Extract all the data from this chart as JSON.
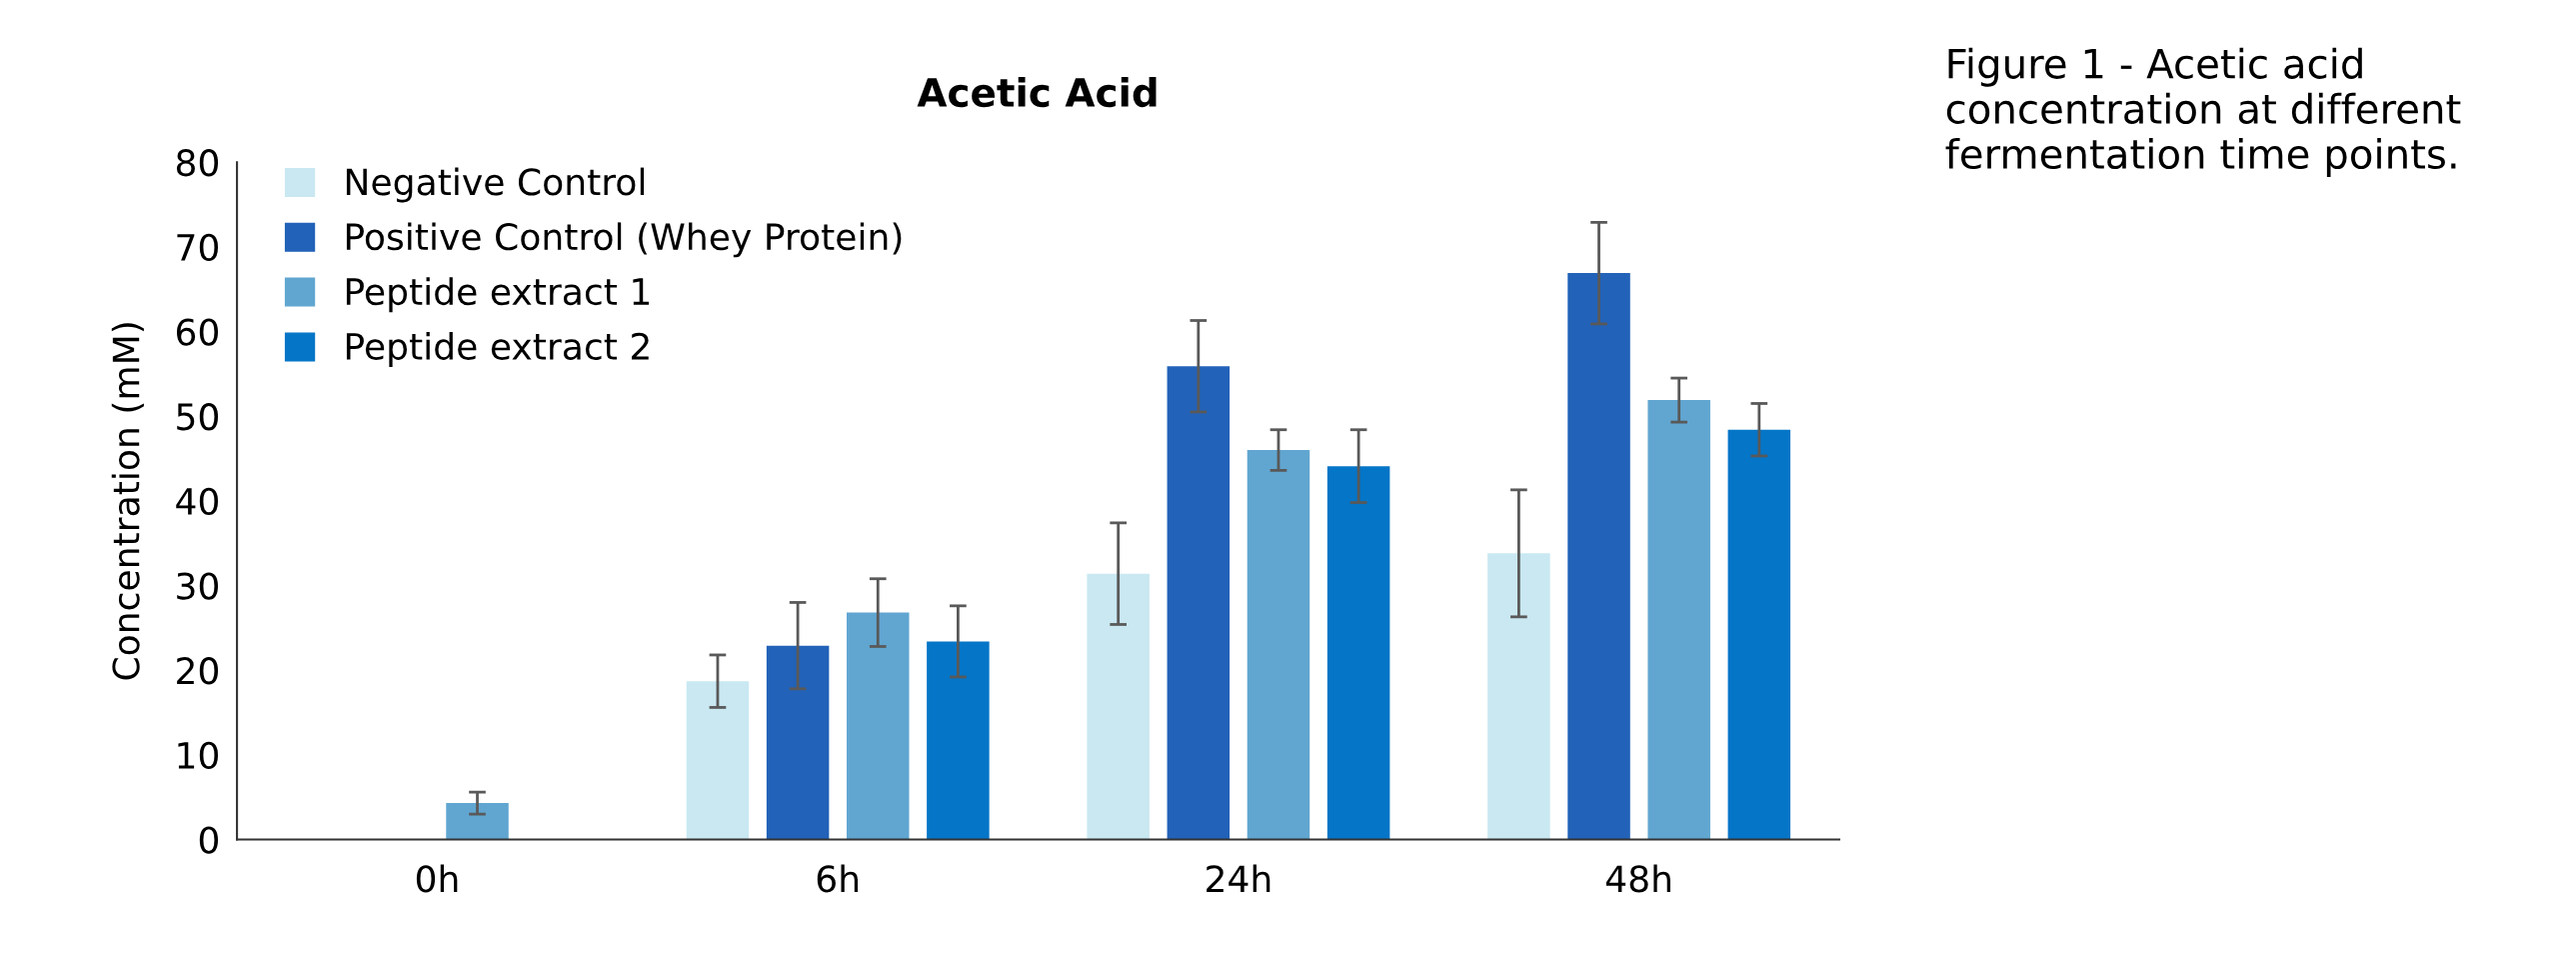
{
  "chart_data": {
    "type": "bar",
    "title": "Acetic Acid",
    "ylabel": "Concentration (mM)",
    "categories": [
      "0h",
      "6h",
      "24h",
      "48h"
    ],
    "series": [
      {
        "name": "Negative Control",
        "color": "#c9e8f2",
        "values": [
          0,
          18.7,
          31.4,
          33.8
        ],
        "errors": [
          null,
          3.1,
          6.0,
          7.5
        ]
      },
      {
        "name": "Positive Control (Whey Protein)",
        "color": "#2262b8",
        "values": [
          0,
          22.9,
          55.9,
          66.9
        ],
        "errors": [
          null,
          5.1,
          5.4,
          6.0
        ]
      },
      {
        "name": "Peptide extract 1",
        "color": "#61a6d1",
        "values": [
          4.3,
          26.8,
          46.0,
          51.9
        ],
        "errors": [
          1.3,
          4.0,
          2.4,
          2.6
        ]
      },
      {
        "name": "Peptide extract 2",
        "color": "#0575c7",
        "values": [
          0,
          23.4,
          44.1,
          48.4
        ],
        "errors": [
          null,
          4.2,
          4.3,
          3.1
        ]
      }
    ],
    "ylim": [
      0,
      80
    ],
    "yticks": [
      0,
      10,
      20,
      30,
      40,
      50,
      60,
      70,
      80
    ],
    "grid": false,
    "legend": "top left",
    "annotations": [
      "Figure 1 - Acetic acid concentration at different fermentation time points."
    ]
  }
}
